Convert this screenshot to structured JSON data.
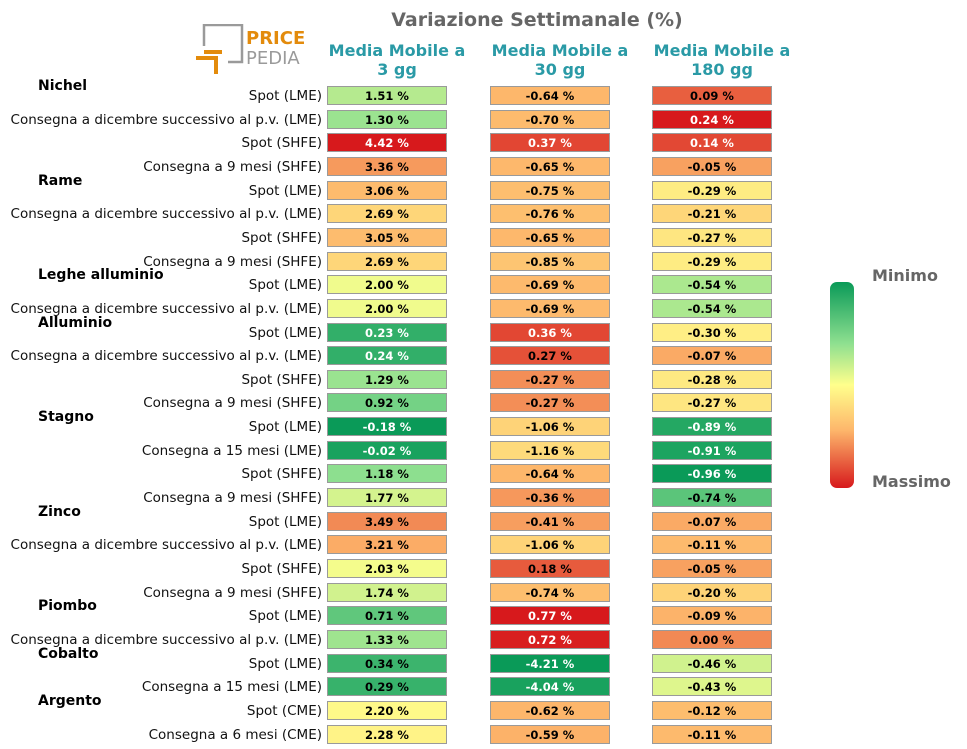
{
  "title": "Variazione Settimanale (%)",
  "logo": {
    "line1": "PRICE",
    "line2": "PEDIA"
  },
  "columns": [
    "Media Mobile a\n3 gg",
    "Media Mobile a\n30 gg",
    "Media Mobile a\n180 gg"
  ],
  "column_lines": [
    [
      "Media Mobile a",
      "3 gg"
    ],
    [
      "Media Mobile a",
      "30 gg"
    ],
    [
      "Media Mobile a",
      "180 gg"
    ]
  ],
  "legend": {
    "min_label": "Minimo",
    "max_label": "Massimo"
  },
  "chart_data": {
    "type": "table",
    "title": "Variazione Settimanale (%)",
    "unit": "%",
    "columns": [
      "Media Mobile a 3 gg",
      "Media Mobile a 30 gg",
      "Media Mobile a 180 gg"
    ],
    "groups": [
      {
        "name": "Nichel",
        "rows": [
          {
            "label": "Spot (LME)",
            "values": [
              1.51,
              -0.64,
              0.09
            ]
          },
          {
            "label": "Consegna a dicembre successivo al p.v. (LME)",
            "values": [
              1.3,
              -0.7,
              0.24
            ]
          },
          {
            "label": "Spot (SHFE)",
            "values": [
              4.42,
              0.37,
              0.14
            ]
          },
          {
            "label": "Consegna a 9 mesi (SHFE)",
            "values": [
              3.36,
              -0.65,
              -0.05
            ]
          }
        ]
      },
      {
        "name": "Rame",
        "rows": [
          {
            "label": "Spot (LME)",
            "values": [
              3.06,
              -0.75,
              -0.29
            ]
          },
          {
            "label": "Consegna a dicembre successivo al p.v. (LME)",
            "values": [
              2.69,
              -0.76,
              -0.21
            ]
          },
          {
            "label": "Spot (SHFE)",
            "values": [
              3.05,
              -0.65,
              -0.27
            ]
          },
          {
            "label": "Consegna a 9 mesi (SHFE)",
            "values": [
              2.69,
              -0.85,
              -0.29
            ]
          }
        ]
      },
      {
        "name": "Leghe alluminio",
        "rows": [
          {
            "label": "Spot (LME)",
            "values": [
              2.0,
              -0.69,
              -0.54
            ]
          },
          {
            "label": "Consegna a dicembre successivo al p.v. (LME)",
            "values": [
              2.0,
              -0.69,
              -0.54
            ]
          }
        ]
      },
      {
        "name": "Alluminio",
        "rows": [
          {
            "label": "Spot (LME)",
            "values": [
              0.23,
              0.36,
              -0.3
            ]
          },
          {
            "label": "Consegna a dicembre successivo al p.v. (LME)",
            "values": [
              0.24,
              0.27,
              -0.07
            ]
          },
          {
            "label": "Spot (SHFE)",
            "values": [
              1.29,
              -0.27,
              -0.28
            ]
          },
          {
            "label": "Consegna a 9 mesi (SHFE)",
            "values": [
              0.92,
              -0.27,
              -0.27
            ]
          }
        ]
      },
      {
        "name": "Stagno",
        "rows": [
          {
            "label": "Spot (LME)",
            "values": [
              -0.18,
              -1.06,
              -0.89
            ]
          },
          {
            "label": "Consegna a 15 mesi (LME)",
            "values": [
              -0.02,
              -1.16,
              -0.91
            ]
          },
          {
            "label": "Spot (SHFE)",
            "values": [
              1.18,
              -0.64,
              -0.96
            ]
          },
          {
            "label": "Consegna a 9 mesi (SHFE)",
            "values": [
              1.77,
              -0.36,
              -0.74
            ]
          }
        ]
      },
      {
        "name": "Zinco",
        "rows": [
          {
            "label": "Spot (LME)",
            "values": [
              3.49,
              -0.41,
              -0.07
            ]
          },
          {
            "label": "Consegna a dicembre successivo al p.v. (LME)",
            "values": [
              3.21,
              -1.06,
              -0.11
            ]
          },
          {
            "label": "Spot (SHFE)",
            "values": [
              2.03,
              0.18,
              -0.05
            ]
          },
          {
            "label": "Consegna a 9 mesi (SHFE)",
            "values": [
              1.74,
              -0.74,
              -0.2
            ]
          }
        ]
      },
      {
        "name": "Piombo",
        "rows": [
          {
            "label": "Spot (LME)",
            "values": [
              0.71,
              0.77,
              -0.09
            ]
          },
          {
            "label": "Consegna a dicembre successivo al p.v. (LME)",
            "values": [
              1.33,
              0.72,
              0.0
            ]
          }
        ]
      },
      {
        "name": "Cobalto",
        "rows": [
          {
            "label": "Spot (LME)",
            "values": [
              0.34,
              -4.21,
              -0.46
            ]
          },
          {
            "label": "Consegna a 15 mesi (LME)",
            "values": [
              0.29,
              -4.04,
              -0.43
            ]
          }
        ]
      },
      {
        "name": "Argento",
        "rows": [
          {
            "label": "Spot (CME)",
            "values": [
              2.2,
              -0.62,
              -0.12
            ]
          },
          {
            "label": "Consegna a 6 mesi (CME)",
            "values": [
              2.28,
              -0.59,
              -0.11
            ]
          }
        ]
      }
    ]
  }
}
